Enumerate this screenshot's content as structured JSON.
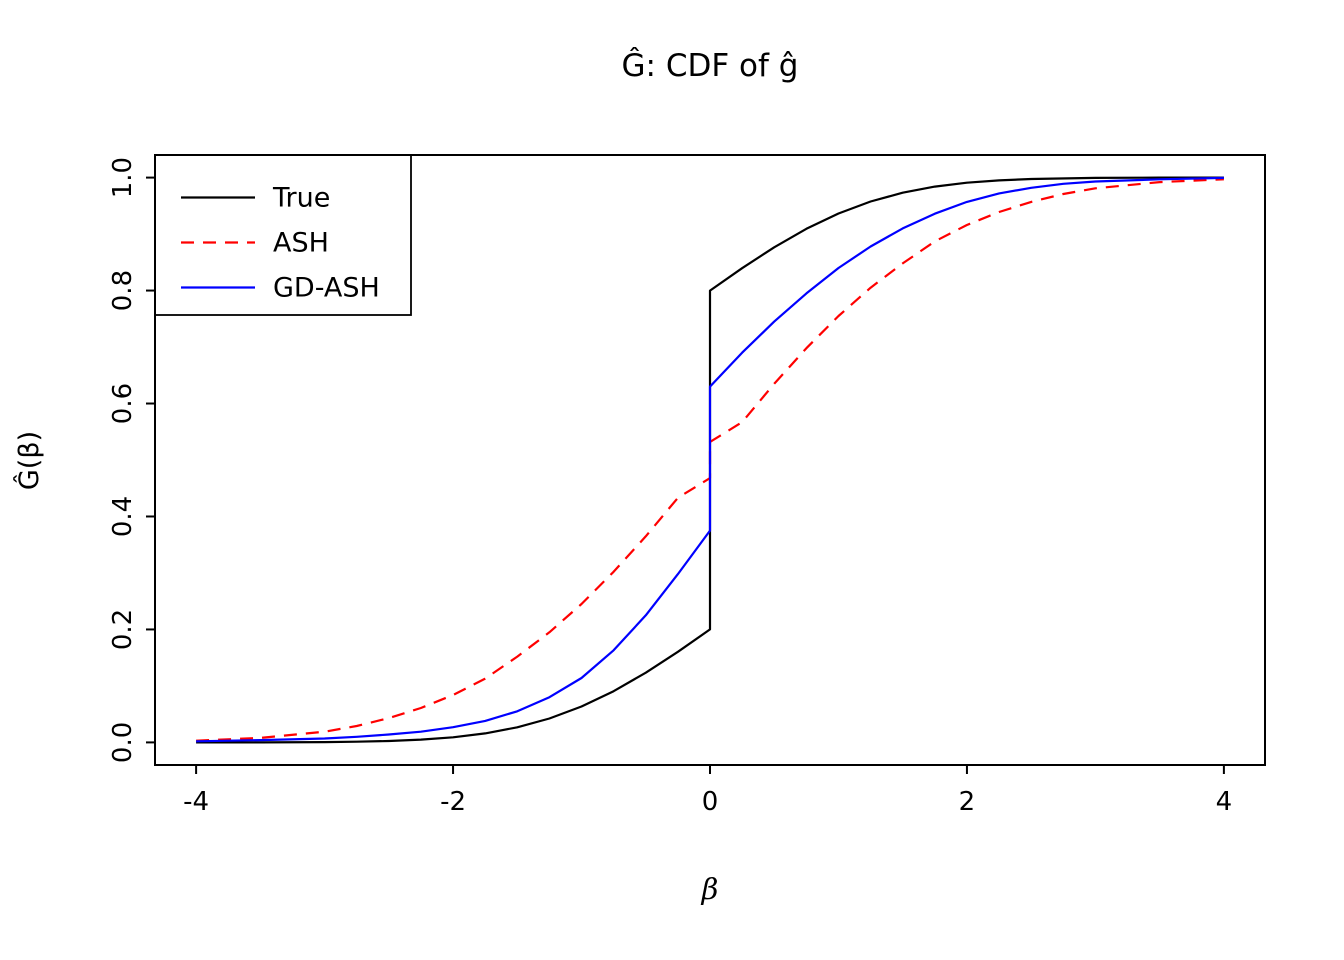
{
  "chart_data": {
    "type": "line",
    "title": "Ĝ: CDF of ĝ",
    "xlabel": "β",
    "ylabel": "Ĝ(β)",
    "xlim": [
      -4,
      4
    ],
    "ylim": [
      0,
      1
    ],
    "xticks": [
      -4,
      -2,
      0,
      2,
      4
    ],
    "xtick_labels": [
      "-4",
      "-2",
      "0",
      "2",
      "4"
    ],
    "yticks": [
      0.0,
      0.2,
      0.4,
      0.6,
      0.8,
      1.0
    ],
    "ytick_labels": [
      "0.0",
      "0.2",
      "0.4",
      "0.6",
      "0.8",
      "1.0"
    ],
    "grid": false,
    "legend_position": "topleft",
    "axis_color": "#000000",
    "series": [
      {
        "name": "True",
        "color": "#000000",
        "style": "solid",
        "points": [
          [
            -4,
            0.0
          ],
          [
            -3.5,
            0.0001
          ],
          [
            -3,
            0.0005
          ],
          [
            -2.75,
            0.0012
          ],
          [
            -2.5,
            0.0025
          ],
          [
            -2.25,
            0.0049
          ],
          [
            -2,
            0.0091
          ],
          [
            -1.75,
            0.016
          ],
          [
            -1.5,
            0.0267
          ],
          [
            -1.25,
            0.0423
          ],
          [
            -1,
            0.0635
          ],
          [
            -0.75,
            0.0907
          ],
          [
            -0.5,
            0.1234
          ],
          [
            -0.25,
            0.1605
          ],
          [
            0,
            0.2
          ],
          [
            0,
            0.8
          ],
          [
            0.25,
            0.8395
          ],
          [
            0.5,
            0.8766
          ],
          [
            0.75,
            0.9093
          ],
          [
            1,
            0.9365
          ],
          [
            1.25,
            0.9577
          ],
          [
            1.5,
            0.9733
          ],
          [
            1.75,
            0.984
          ],
          [
            2,
            0.9909
          ],
          [
            2.25,
            0.9951
          ],
          [
            2.5,
            0.9975
          ],
          [
            3,
            0.9995
          ],
          [
            3.5,
            0.9999
          ],
          [
            4,
            1.0
          ]
        ]
      },
      {
        "name": "ASH",
        "color": "#FF0000",
        "style": "dashed",
        "points": [
          [
            -4,
            0.003
          ],
          [
            -3.5,
            0.008
          ],
          [
            -3,
            0.019
          ],
          [
            -2.75,
            0.029
          ],
          [
            -2.5,
            0.043
          ],
          [
            -2.25,
            0.061
          ],
          [
            -2,
            0.084
          ],
          [
            -1.75,
            0.113
          ],
          [
            -1.5,
            0.152
          ],
          [
            -1.25,
            0.195
          ],
          [
            -1,
            0.245
          ],
          [
            -0.75,
            0.302
          ],
          [
            -0.5,
            0.365
          ],
          [
            -0.25,
            0.433
          ],
          [
            0,
            0.468
          ],
          [
            0,
            0.532
          ],
          [
            0.25,
            0.567
          ],
          [
            0.5,
            0.635
          ],
          [
            0.75,
            0.698
          ],
          [
            1,
            0.755
          ],
          [
            1.25,
            0.805
          ],
          [
            1.5,
            0.848
          ],
          [
            1.75,
            0.887
          ],
          [
            2,
            0.916
          ],
          [
            2.25,
            0.939
          ],
          [
            2.5,
            0.957
          ],
          [
            2.75,
            0.971
          ],
          [
            3,
            0.981
          ],
          [
            3.5,
            0.992
          ],
          [
            4,
            0.997
          ]
        ]
      },
      {
        "name": "GD-ASH",
        "color": "#0000FF",
        "style": "solid",
        "points": [
          [
            -4,
            0.002
          ],
          [
            -3.5,
            0.004
          ],
          [
            -3,
            0.007
          ],
          [
            -2.75,
            0.01
          ],
          [
            -2.5,
            0.014
          ],
          [
            -2.25,
            0.019
          ],
          [
            -2,
            0.027
          ],
          [
            -1.75,
            0.038
          ],
          [
            -1.5,
            0.055
          ],
          [
            -1.25,
            0.08
          ],
          [
            -1,
            0.114
          ],
          [
            -0.75,
            0.163
          ],
          [
            -0.5,
            0.225
          ],
          [
            -0.25,
            0.298
          ],
          [
            0,
            0.375
          ],
          [
            0,
            0.63
          ],
          [
            0.25,
            0.69
          ],
          [
            0.5,
            0.745
          ],
          [
            0.75,
            0.795
          ],
          [
            1,
            0.84
          ],
          [
            1.25,
            0.878
          ],
          [
            1.5,
            0.91
          ],
          [
            1.75,
            0.936
          ],
          [
            2,
            0.957
          ],
          [
            2.25,
            0.972
          ],
          [
            2.5,
            0.982
          ],
          [
            2.75,
            0.989
          ],
          [
            3,
            0.993
          ],
          [
            3.5,
            0.997
          ],
          [
            4,
            0.9995
          ]
        ]
      }
    ]
  }
}
